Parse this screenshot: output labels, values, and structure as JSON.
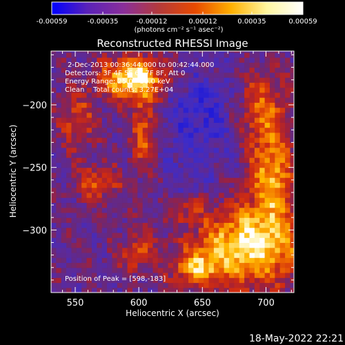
{
  "chart_data": {
    "type": "heatmap",
    "title": "Reconstructed RHESSI Image",
    "xlabel": "Heliocentric X (arcsec)",
    "ylabel": "Heliocentric Y (arcsec)",
    "xlim": [
      531,
      722
    ],
    "ylim": [
      -350,
      -157
    ],
    "x_ticks": [
      550,
      600,
      650,
      700
    ],
    "y_ticks": [
      -200,
      -250,
      -300
    ],
    "colorbar": {
      "min": -0.00059,
      "max": 0.00059,
      "ticks": [
        "-0.00059",
        "-0.00035",
        "-0.00012",
        "0.00012",
        "0.00035",
        "0.00059"
      ],
      "unit_label": "(photons cm⁻² s⁻¹ asec⁻²)",
      "colors": [
        "#0000ff",
        "#5a22b8",
        "#8a2f9a",
        "#b53a3a",
        "#e84a00",
        "#ffb000",
        "#fff6a0",
        "#ffffff"
      ]
    },
    "annotations": [
      "2-Dec-2013 00:36:44.000 to 00:42:44.000",
      "Detectors: 3F 4F 5F 6F 7F 8F, Att 0",
      "Energy Range: 25.0 - 50.0 keV",
      "Clean    Total counts: 3.27E+04"
    ],
    "peak_label": "Position of Peak = [598,-183]",
    "peak": [
      598,
      -183
    ],
    "emission_sources": [
      {
        "x": 596,
        "y": -179,
        "sx": 18,
        "sy": 12,
        "amp": 1.0
      },
      {
        "x": 604,
        "y": -222,
        "sx": 7,
        "sy": 20,
        "amp": 0.55
      },
      {
        "x": 688,
        "y": -312,
        "sx": 30,
        "sy": 22,
        "amp": 0.95
      },
      {
        "x": 705,
        "y": -258,
        "sx": 12,
        "sy": 22,
        "amp": 0.7
      },
      {
        "x": 698,
        "y": -205,
        "sx": 14,
        "sy": 22,
        "amp": 0.55
      },
      {
        "x": 646,
        "y": -330,
        "sx": 14,
        "sy": 10,
        "amp": 0.55
      },
      {
        "x": 600,
        "y": -318,
        "sx": 10,
        "sy": 10,
        "amp": 0.45
      },
      {
        "x": 568,
        "y": -262,
        "sx": 12,
        "sy": 9,
        "amp": 0.5
      },
      {
        "x": 552,
        "y": -212,
        "sx": 10,
        "sy": 16,
        "amp": 0.4
      },
      {
        "x": 638,
        "y": -282,
        "sx": 10,
        "sy": 9,
        "amp": 0.35
      }
    ],
    "negative_sources": [
      {
        "x": 648,
        "y": -210,
        "sx": 22,
        "sy": 28,
        "amp": 0.6
      },
      {
        "x": 640,
        "y": -270,
        "sx": 12,
        "sy": 18,
        "amp": 0.3
      }
    ]
  },
  "footer_date": "18-May-2022 22:21"
}
